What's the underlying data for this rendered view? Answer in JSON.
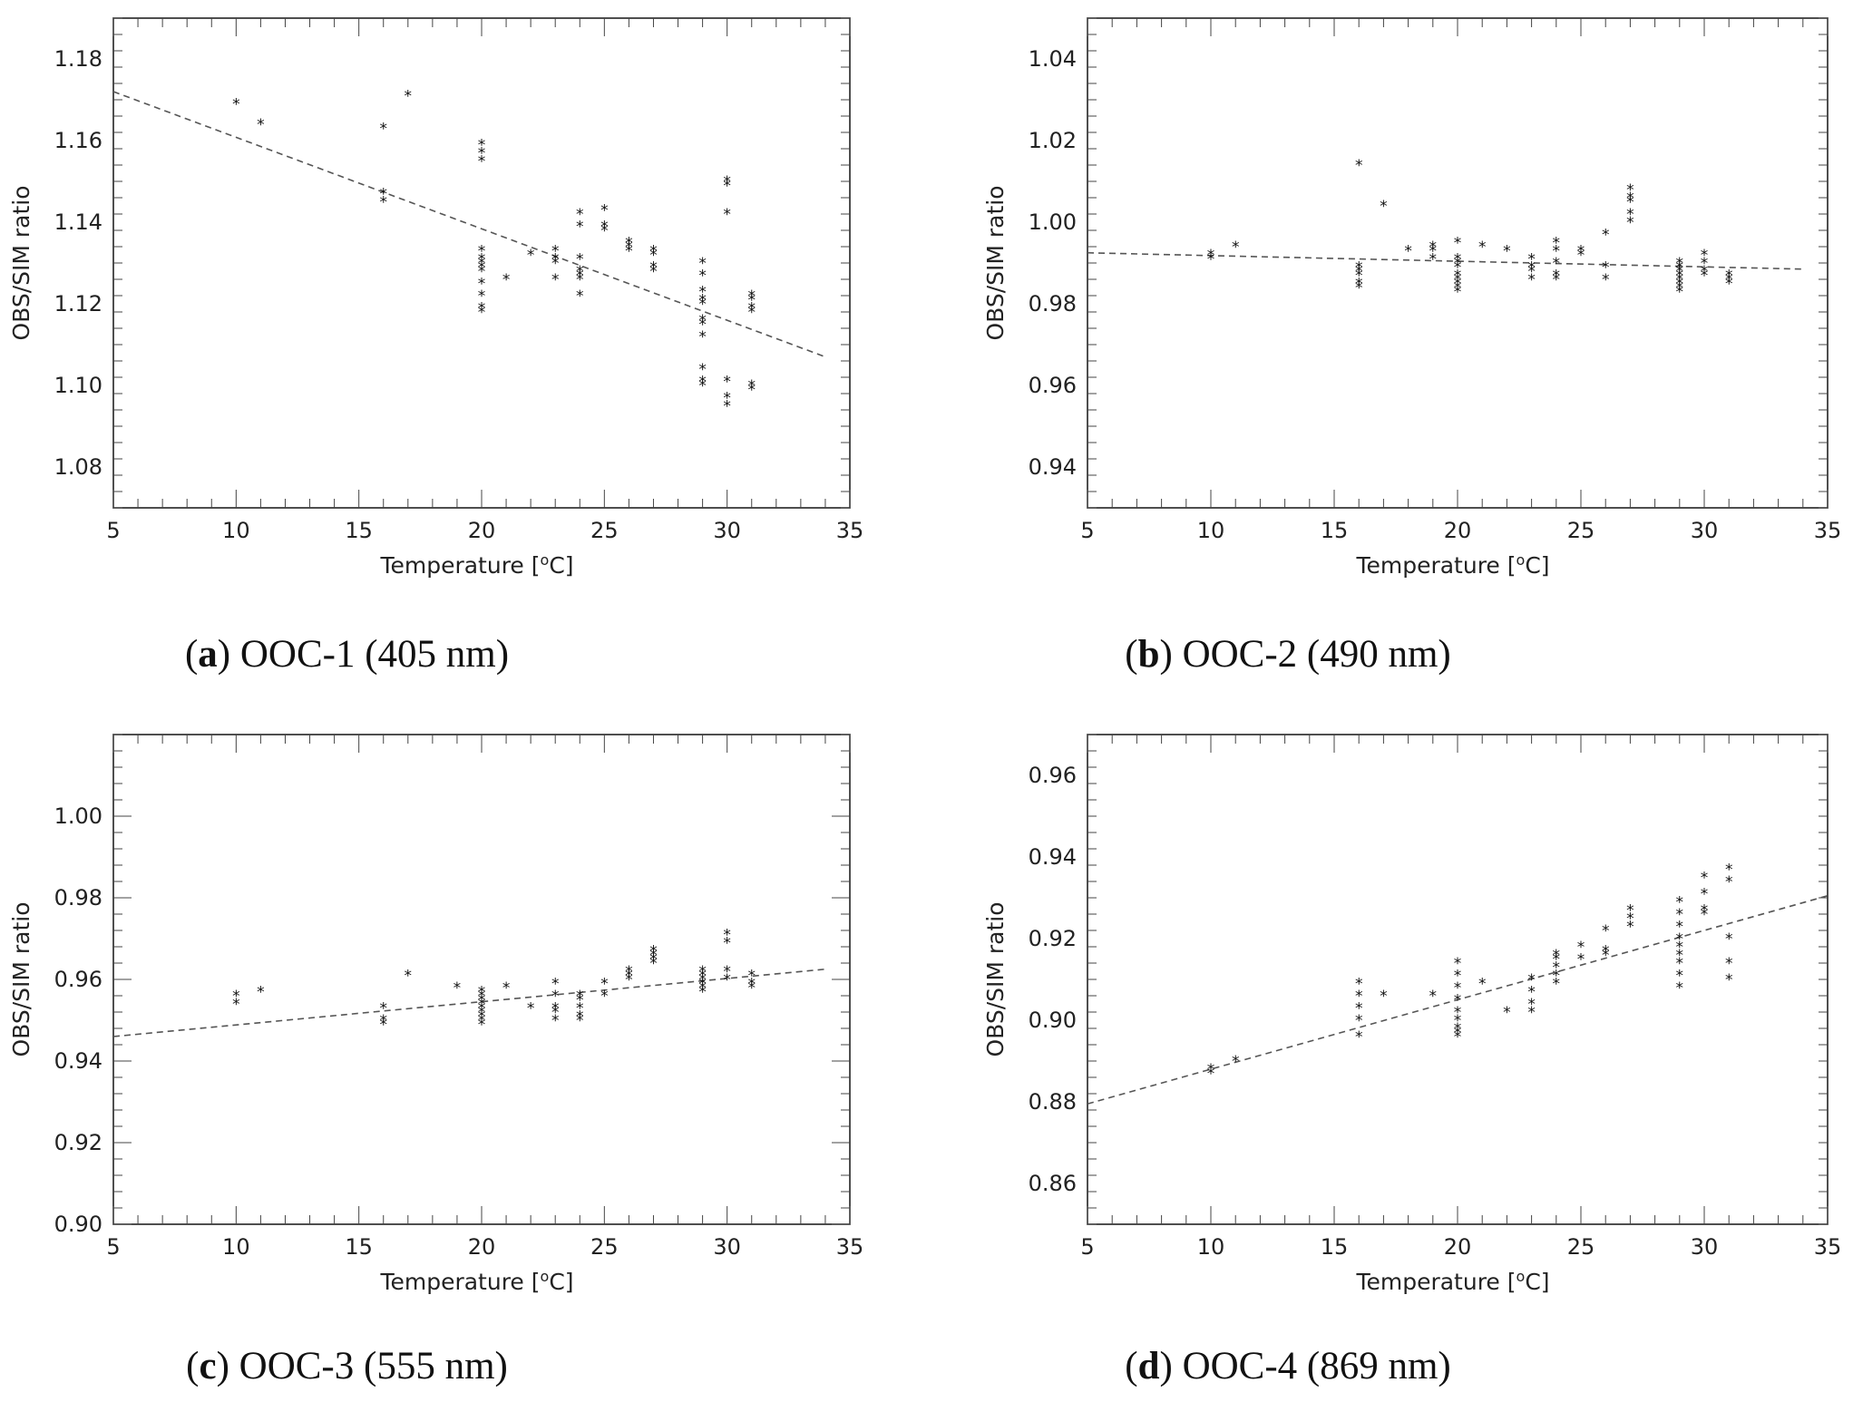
{
  "chart_data": [
    {
      "type": "scatter",
      "panel_id": "a",
      "caption_letter": "a",
      "caption_text": " OOC-1 (405 nm)",
      "xlabel": "Temperature [",
      "xlabel_sup": "o",
      "xlabel_end": "C]",
      "ylabel": "OBS/SIM ratio",
      "xlim": [
        5,
        35
      ],
      "ylim": [
        1.07,
        1.19
      ],
      "xticks": [
        5,
        10,
        15,
        20,
        25,
        30,
        35
      ],
      "yticks": [
        1.08,
        1.1,
        1.12,
        1.14,
        1.16,
        1.18
      ],
      "xtick_labels": [
        "5",
        "10",
        "15",
        "20",
        "25",
        "30",
        "35"
      ],
      "ytick_labels": [
        "1.08",
        "1.10",
        "1.12",
        "1.14",
        "1.16",
        "1.18"
      ],
      "marker_symbol": "*",
      "trend_line": {
        "x": [
          5,
          34
        ],
        "y": [
          1.172,
          1.107
        ]
      },
      "points": [
        [
          10,
          1.169
        ],
        [
          11,
          1.164
        ],
        [
          16,
          1.163
        ],
        [
          16,
          1.147
        ],
        [
          16,
          1.145
        ],
        [
          17,
          1.171
        ],
        [
          20,
          1.159
        ],
        [
          20,
          1.157
        ],
        [
          20,
          1.155
        ],
        [
          20,
          1.133
        ],
        [
          20,
          1.131
        ],
        [
          20,
          1.13
        ],
        [
          20,
          1.129
        ],
        [
          20,
          1.128
        ],
        [
          20,
          1.125
        ],
        [
          20,
          1.122
        ],
        [
          20,
          1.119
        ],
        [
          20,
          1.118
        ],
        [
          21,
          1.126
        ],
        [
          22,
          1.132
        ],
        [
          23,
          1.133
        ],
        [
          23,
          1.131
        ],
        [
          23,
          1.13
        ],
        [
          23,
          1.126
        ],
        [
          24,
          1.142
        ],
        [
          24,
          1.139
        ],
        [
          24,
          1.131
        ],
        [
          24,
          1.128
        ],
        [
          24,
          1.127
        ],
        [
          24,
          1.126
        ],
        [
          24,
          1.122
        ],
        [
          25,
          1.143
        ],
        [
          25,
          1.139
        ],
        [
          25,
          1.138
        ],
        [
          26,
          1.135
        ],
        [
          26,
          1.134
        ],
        [
          26,
          1.133
        ],
        [
          27,
          1.133
        ],
        [
          27,
          1.132
        ],
        [
          27,
          1.129
        ],
        [
          27,
          1.128
        ],
        [
          29,
          1.13
        ],
        [
          29,
          1.127
        ],
        [
          29,
          1.123
        ],
        [
          29,
          1.121
        ],
        [
          29,
          1.12
        ],
        [
          29,
          1.116
        ],
        [
          29,
          1.115
        ],
        [
          29,
          1.112
        ],
        [
          29,
          1.104
        ],
        [
          29,
          1.101
        ],
        [
          29,
          1.1
        ],
        [
          30,
          1.15
        ],
        [
          30,
          1.149
        ],
        [
          30,
          1.142
        ],
        [
          30,
          1.101
        ],
        [
          30,
          1.097
        ],
        [
          30,
          1.095
        ],
        [
          31,
          1.122
        ],
        [
          31,
          1.121
        ],
        [
          31,
          1.119
        ],
        [
          31,
          1.118
        ],
        [
          31,
          1.1
        ],
        [
          31,
          1.099
        ]
      ]
    },
    {
      "type": "scatter",
      "panel_id": "b",
      "caption_letter": "b",
      "caption_text": " OOC-2 (490 nm)",
      "xlabel": "Temperature [",
      "xlabel_sup": "o",
      "xlabel_end": "C]",
      "ylabel": "OBS/SIM ratio",
      "xlim": [
        5,
        35
      ],
      "ylim": [
        0.93,
        1.05
      ],
      "xticks": [
        5,
        10,
        15,
        20,
        25,
        30,
        35
      ],
      "yticks": [
        0.94,
        0.96,
        0.98,
        1.0,
        1.02,
        1.04
      ],
      "xtick_labels": [
        "5",
        "10",
        "15",
        "20",
        "25",
        "30",
        "35"
      ],
      "ytick_labels": [
        "0.94",
        "0.96",
        "0.98",
        "1.00",
        "1.02",
        "1.04"
      ],
      "marker_symbol": "*",
      "trend_line": {
        "x": [
          5,
          34
        ],
        "y": [
          0.9925,
          0.9885
        ]
      },
      "points": [
        [
          10,
          0.992
        ],
        [
          10,
          0.991
        ],
        [
          11,
          0.994
        ],
        [
          16,
          1.014
        ],
        [
          16,
          0.989
        ],
        [
          16,
          0.988
        ],
        [
          16,
          0.987
        ],
        [
          16,
          0.985
        ],
        [
          16,
          0.984
        ],
        [
          17,
          1.004
        ],
        [
          18,
          0.993
        ],
        [
          19,
          0.994
        ],
        [
          19,
          0.993
        ],
        [
          19,
          0.991
        ],
        [
          20,
          0.995
        ],
        [
          20,
          0.991
        ],
        [
          20,
          0.99
        ],
        [
          20,
          0.989
        ],
        [
          20,
          0.987
        ],
        [
          20,
          0.986
        ],
        [
          20,
          0.985
        ],
        [
          20,
          0.984
        ],
        [
          20,
          0.983
        ],
        [
          21,
          0.994
        ],
        [
          22,
          0.993
        ],
        [
          23,
          0.991
        ],
        [
          23,
          0.989
        ],
        [
          23,
          0.988
        ],
        [
          23,
          0.986
        ],
        [
          24,
          0.995
        ],
        [
          24,
          0.993
        ],
        [
          24,
          0.99
        ],
        [
          24,
          0.987
        ],
        [
          24,
          0.986
        ],
        [
          25,
          0.993
        ],
        [
          25,
          0.992
        ],
        [
          26,
          0.997
        ],
        [
          26,
          0.989
        ],
        [
          26,
          0.986
        ],
        [
          27,
          1.008
        ],
        [
          27,
          1.006
        ],
        [
          27,
          1.005
        ],
        [
          27,
          1.002
        ],
        [
          27,
          1.0
        ],
        [
          29,
          0.99
        ],
        [
          29,
          0.989
        ],
        [
          29,
          0.988
        ],
        [
          29,
          0.987
        ],
        [
          29,
          0.986
        ],
        [
          29,
          0.985
        ],
        [
          29,
          0.984
        ],
        [
          29,
          0.983
        ],
        [
          30,
          0.992
        ],
        [
          30,
          0.99
        ],
        [
          30,
          0.988
        ],
        [
          30,
          0.987
        ],
        [
          31,
          0.987
        ],
        [
          31,
          0.986
        ],
        [
          31,
          0.985
        ]
      ]
    },
    {
      "type": "scatter",
      "panel_id": "c",
      "caption_letter": "c",
      "caption_text": " OOC-3 (555 nm)",
      "xlabel": "Temperature [",
      "xlabel_sup": "o",
      "xlabel_end": "C]",
      "ylabel": "OBS/SIM ratio",
      "xlim": [
        5,
        35
      ],
      "ylim": [
        0.9,
        1.02
      ],
      "xticks": [
        5,
        10,
        15,
        20,
        25,
        30,
        35
      ],
      "yticks": [
        0.9,
        0.92,
        0.94,
        0.96,
        0.98,
        1.0
      ],
      "xtick_labels": [
        "5",
        "10",
        "15",
        "20",
        "25",
        "30",
        "35"
      ],
      "ytick_labels": [
        "0.90",
        "0.92",
        "0.94",
        "0.96",
        "0.98",
        "1.00"
      ],
      "marker_symbol": "*",
      "trend_line": {
        "x": [
          5,
          34
        ],
        "y": [
          0.946,
          0.9625
        ]
      },
      "points": [
        [
          10,
          0.956
        ],
        [
          10,
          0.954
        ],
        [
          11,
          0.957
        ],
        [
          16,
          0.953
        ],
        [
          16,
          0.95
        ],
        [
          16,
          0.949
        ],
        [
          17,
          0.961
        ],
        [
          19,
          0.958
        ],
        [
          20,
          0.957
        ],
        [
          20,
          0.956
        ],
        [
          20,
          0.955
        ],
        [
          20,
          0.954
        ],
        [
          20,
          0.953
        ],
        [
          20,
          0.952
        ],
        [
          20,
          0.951
        ],
        [
          20,
          0.95
        ],
        [
          20,
          0.949
        ],
        [
          21,
          0.958
        ],
        [
          22,
          0.953
        ],
        [
          23,
          0.959
        ],
        [
          23,
          0.956
        ],
        [
          23,
          0.953
        ],
        [
          23,
          0.952
        ],
        [
          23,
          0.95
        ],
        [
          24,
          0.956
        ],
        [
          24,
          0.955
        ],
        [
          24,
          0.953
        ],
        [
          24,
          0.951
        ],
        [
          24,
          0.95
        ],
        [
          25,
          0.959
        ],
        [
          25,
          0.956
        ],
        [
          26,
          0.962
        ],
        [
          26,
          0.961
        ],
        [
          26,
          0.96
        ],
        [
          27,
          0.967
        ],
        [
          27,
          0.966
        ],
        [
          27,
          0.965
        ],
        [
          27,
          0.964
        ],
        [
          29,
          0.962
        ],
        [
          29,
          0.961
        ],
        [
          29,
          0.96
        ],
        [
          29,
          0.959
        ],
        [
          29,
          0.958
        ],
        [
          29,
          0.957
        ],
        [
          30,
          0.971
        ],
        [
          30,
          0.969
        ],
        [
          30,
          0.962
        ],
        [
          30,
          0.96
        ],
        [
          31,
          0.961
        ],
        [
          31,
          0.959
        ],
        [
          31,
          0.958
        ]
      ]
    },
    {
      "type": "scatter",
      "panel_id": "d",
      "caption_letter": "d",
      "caption_text": " OOC-4 (869 nm)",
      "xlabel": "Temperature [",
      "xlabel_sup": "o",
      "xlabel_end": "C]",
      "ylabel": "OBS/SIM ratio",
      "xlim": [
        5,
        35
      ],
      "ylim": [
        0.85,
        0.97
      ],
      "xticks": [
        5,
        10,
        15,
        20,
        25,
        30,
        35
      ],
      "yticks": [
        0.86,
        0.88,
        0.9,
        0.92,
        0.94,
        0.96
      ],
      "xtick_labels": [
        "5",
        "10",
        "15",
        "20",
        "25",
        "30",
        "35"
      ],
      "ytick_labels": [
        "0.86",
        "0.88",
        "0.90",
        "0.92",
        "0.94",
        "0.96"
      ],
      "marker_symbol": "*",
      "trend_line": {
        "x": [
          5,
          35
        ],
        "y": [
          0.8795,
          0.9305
        ]
      },
      "points": [
        [
          10,
          0.888
        ],
        [
          10,
          0.887
        ],
        [
          11,
          0.89
        ],
        [
          16,
          0.909
        ],
        [
          16,
          0.906
        ],
        [
          16,
          0.903
        ],
        [
          16,
          0.9
        ],
        [
          16,
          0.896
        ],
        [
          17,
          0.906
        ],
        [
          19,
          0.906
        ],
        [
          20,
          0.914
        ],
        [
          20,
          0.911
        ],
        [
          20,
          0.908
        ],
        [
          20,
          0.905
        ],
        [
          20,
          0.902
        ],
        [
          20,
          0.9
        ],
        [
          20,
          0.898
        ],
        [
          20,
          0.897
        ],
        [
          20,
          0.896
        ],
        [
          21,
          0.909
        ],
        [
          22,
          0.902
        ],
        [
          23,
          0.91
        ],
        [
          23,
          0.907
        ],
        [
          23,
          0.904
        ],
        [
          23,
          0.902
        ],
        [
          24,
          0.916
        ],
        [
          24,
          0.915
        ],
        [
          24,
          0.913
        ],
        [
          24,
          0.911
        ],
        [
          24,
          0.909
        ],
        [
          25,
          0.918
        ],
        [
          25,
          0.915
        ],
        [
          26,
          0.922
        ],
        [
          26,
          0.917
        ],
        [
          26,
          0.916
        ],
        [
          27,
          0.927
        ],
        [
          27,
          0.925
        ],
        [
          27,
          0.923
        ],
        [
          29,
          0.929
        ],
        [
          29,
          0.926
        ],
        [
          29,
          0.923
        ],
        [
          29,
          0.92
        ],
        [
          29,
          0.918
        ],
        [
          29,
          0.916
        ],
        [
          29,
          0.914
        ],
        [
          29,
          0.911
        ],
        [
          29,
          0.908
        ],
        [
          30,
          0.935
        ],
        [
          30,
          0.931
        ],
        [
          30,
          0.927
        ],
        [
          30,
          0.926
        ],
        [
          31,
          0.937
        ],
        [
          31,
          0.934
        ],
        [
          31,
          0.92
        ],
        [
          31,
          0.914
        ],
        [
          31,
          0.91
        ]
      ]
    }
  ]
}
